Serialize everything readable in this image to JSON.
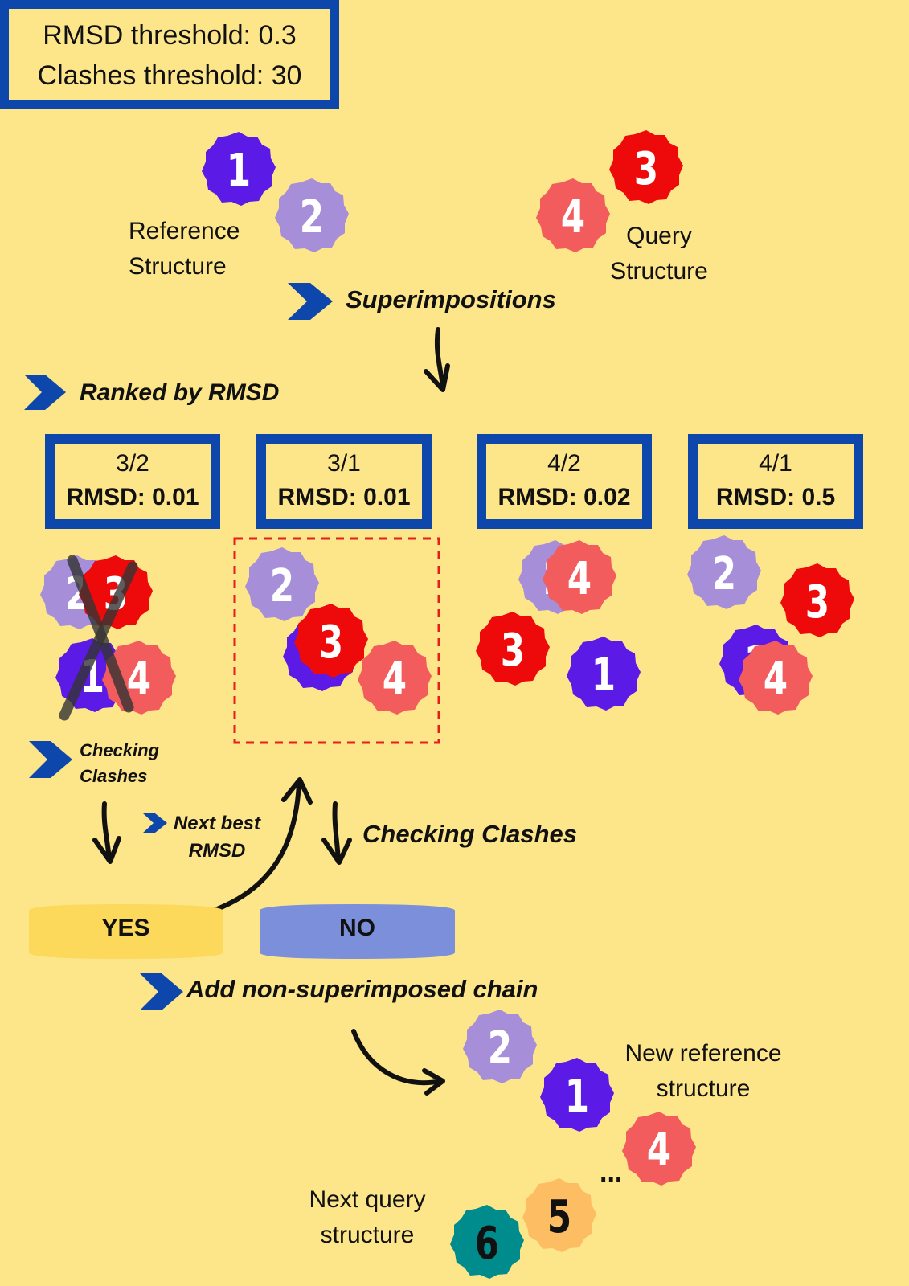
{
  "thresholds": {
    "rmsd": "RMSD threshold: 0.3",
    "clashes": "Clashes threshold: 30"
  },
  "labels": {
    "reference_line1": "Reference",
    "reference_line2": "Structure",
    "query_line1": "Query",
    "query_line2": "Structure",
    "superimpositions": "Superimpositions",
    "ranked": "Ranked by RMSD",
    "checking_clashes_small_1": "Checking",
    "checking_clashes_small_2": "Clashes",
    "next_best_1": "Next best",
    "next_best_2": "RMSD",
    "checking_clashes": "Checking Clashes",
    "yes": "YES",
    "no": "NO",
    "add_chain": "Add non-superimposed chain",
    "new_ref_1": "New reference",
    "new_ref_2": "structure",
    "next_query_1": "Next query",
    "next_query_2": "structure",
    "ellipsis": "..."
  },
  "pairs": [
    {
      "pair": "3/2",
      "rmsd": "RMSD: 0.01"
    },
    {
      "pair": "3/1",
      "rmsd": "RMSD: 0.01"
    },
    {
      "pair": "4/2",
      "rmsd": "RMSD: 0.02"
    },
    {
      "pair": "4/1",
      "rmsd": "RMSD: 0.5"
    }
  ],
  "chain_colors": {
    "1": "#5B1AE6",
    "2": "#A68ED9",
    "3": "#EE0A0A",
    "4": "#F25C5C",
    "5": "#FDBE63",
    "6": "#008C8C"
  },
  "colors": {
    "background": "#FDE68A",
    "box_border": "#0E47AC",
    "chevron": "#0E47AC",
    "yes_pill": "#FCD95A",
    "no_pill": "#7B8FDB",
    "dashed": "#E61E1E"
  },
  "badges": [
    {
      "n": "1"
    },
    {
      "n": "2"
    },
    {
      "n": "3"
    },
    {
      "n": "4"
    },
    {
      "n": "2"
    },
    {
      "n": "3"
    },
    {
      "n": "1"
    },
    {
      "n": "4"
    },
    {
      "n": "2"
    },
    {
      "n": "1"
    },
    {
      "n": "3"
    },
    {
      "n": "4"
    },
    {
      "n": "2"
    },
    {
      "n": "4"
    },
    {
      "n": "3"
    },
    {
      "n": "1"
    },
    {
      "n": "2"
    },
    {
      "n": "3"
    },
    {
      "n": "1"
    },
    {
      "n": "4"
    },
    {
      "n": "2"
    },
    {
      "n": "1"
    },
    {
      "n": "4"
    },
    {
      "n": "5"
    },
    {
      "n": "6"
    }
  ]
}
